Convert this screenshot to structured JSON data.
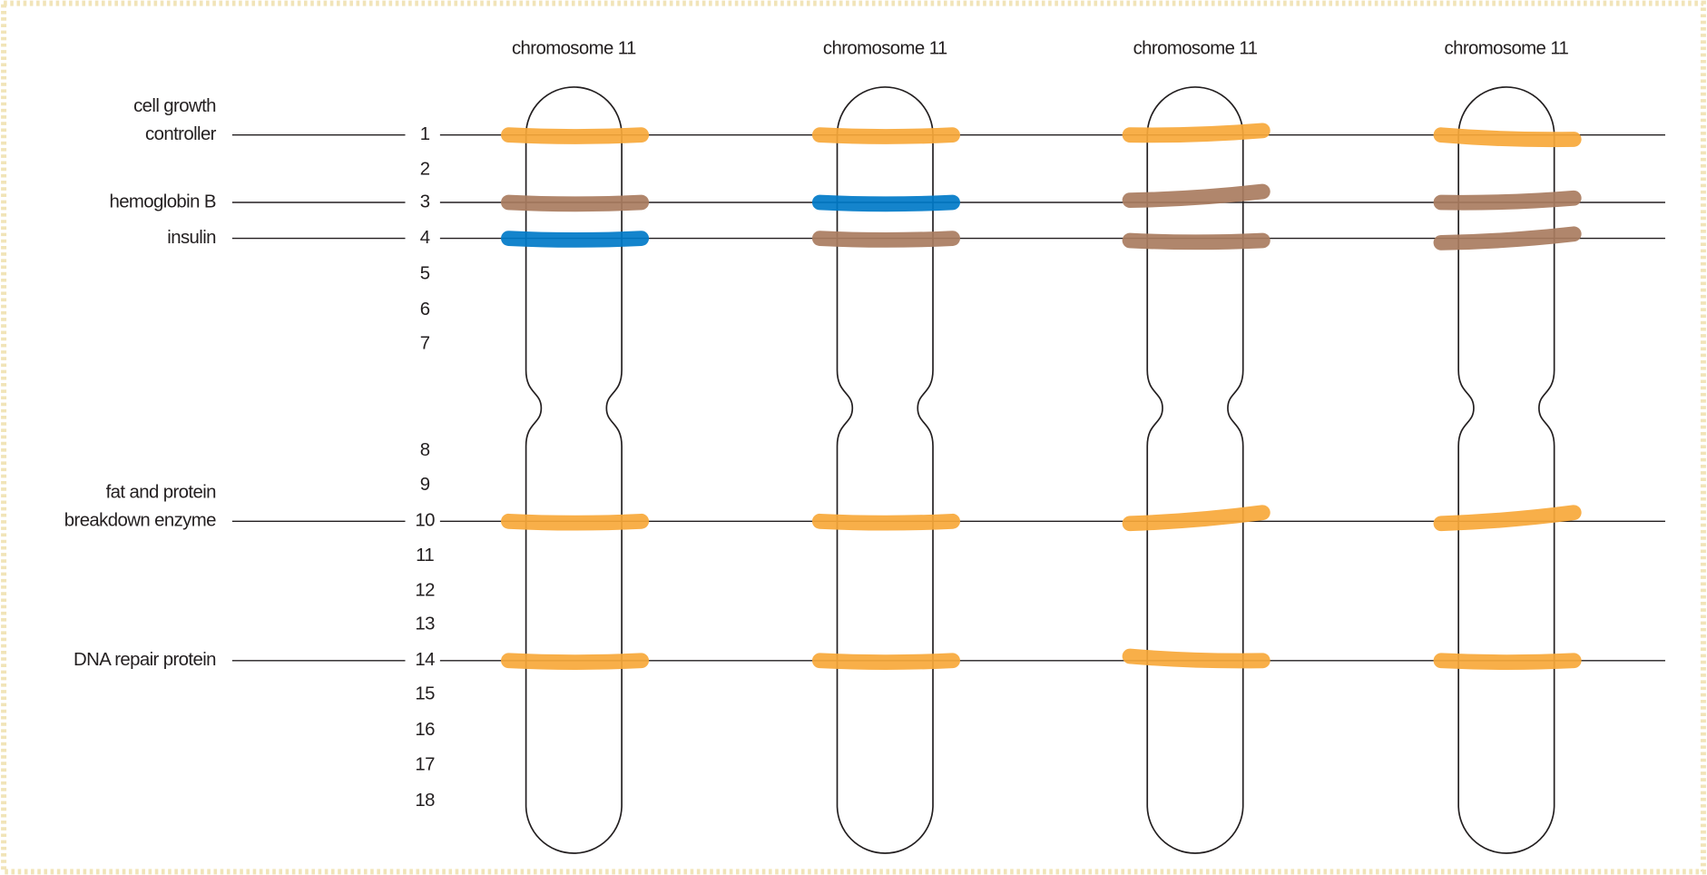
{
  "chromosomes": [
    {
      "label": "chromosome 11"
    },
    {
      "label": "chromosome 11"
    },
    {
      "label": "chromosome 11"
    },
    {
      "label": "chromosome 11"
    }
  ],
  "genes": [
    {
      "lines": [
        "cell growth",
        "controller"
      ]
    },
    {
      "lines": [
        "hemoglobin B"
      ]
    },
    {
      "lines": [
        "insulin"
      ]
    },
    {
      "lines": [
        "fat and protein",
        "breakdown enzyme"
      ]
    },
    {
      "lines": [
        "DNA repair protein"
      ]
    }
  ],
  "positions": [
    "1",
    "2",
    "3",
    "4",
    "5",
    "6",
    "7",
    "8",
    "9",
    "10",
    "11",
    "12",
    "13",
    "14",
    "15",
    "16",
    "17",
    "18"
  ]
}
